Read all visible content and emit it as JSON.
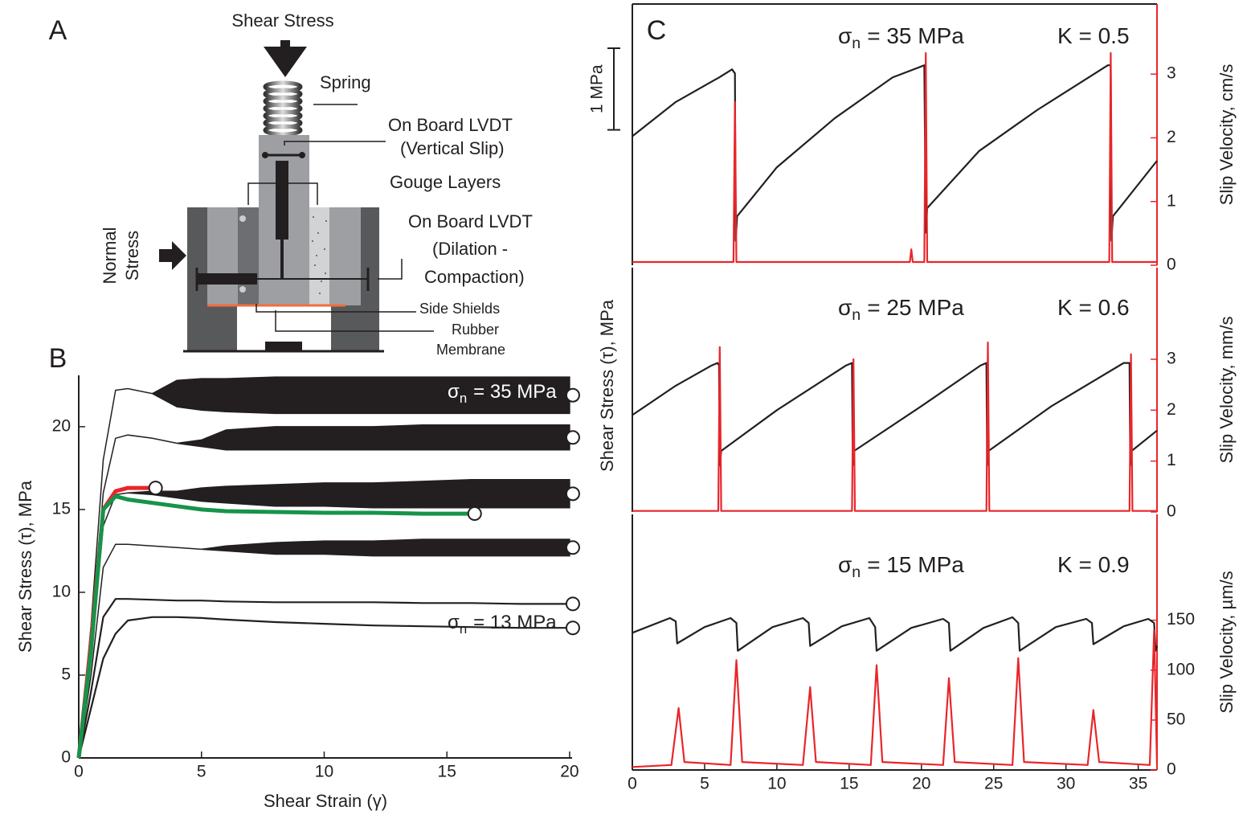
{
  "panel_labels": [
    "A",
    "B",
    "C"
  ],
  "diagram": {
    "labels": [
      "Shear Stress",
      "Spring",
      "On Board LVDT",
      "(Vertical Slip)",
      "Gouge Layers",
      "On Board LVDT",
      "(Dilation -",
      "Compaction)",
      "Normal",
      "Stress",
      "Side Shields",
      "Rubber",
      "Membrane"
    ]
  },
  "chart_data": [
    {
      "type": "line",
      "xlabel": "Shear Strain (γ)",
      "ylabel": "Shear Stress (τ), MPa",
      "xlim": [
        0,
        20.1
      ],
      "xticks": [
        0,
        5,
        10,
        15,
        20
      ],
      "ylim": [
        0,
        23.1
      ],
      "yticks": [
        0,
        5,
        10,
        15,
        20
      ],
      "end_markers": true,
      "x": [
        0,
        0.5,
        1,
        1.5,
        2,
        3,
        4,
        5,
        6,
        8,
        10,
        12,
        14,
        16,
        18,
        20
      ],
      "series": [
        {
          "color": "#231f20",
          "values": [
            0,
            8,
            18,
            22.2,
            22.3,
            22.0,
            21.2,
            21.0,
            20.9,
            20.8,
            20.8,
            20.8,
            20.8,
            20.8,
            20.8,
            20.8
          ],
          "high": [
            0,
            8,
            18,
            22.2,
            22.3,
            22.0,
            22.8,
            22.9,
            22.9,
            23,
            23,
            23,
            23,
            23,
            23,
            23
          ]
        },
        {
          "color": "#231f20",
          "values": [
            0,
            7,
            16,
            19.3,
            19.5,
            19.3,
            19.0,
            18.8,
            18.6,
            18.6,
            18.6,
            18.6,
            18.6,
            18.6,
            18.6,
            18.6
          ],
          "high": [
            0,
            7,
            16,
            19.3,
            19.5,
            19.3,
            19.0,
            19.2,
            19.8,
            20,
            20,
            20,
            20.1,
            20.1,
            20.1,
            20.1
          ]
        },
        {
          "color": "#231f20",
          "values": [
            0,
            6,
            14,
            15.9,
            16.0,
            15.9,
            15.7,
            15.5,
            15.4,
            15.2,
            15.2,
            15.1,
            15.1,
            15.1,
            15.1,
            15.1
          ],
          "high": [
            0,
            6,
            14,
            15.9,
            16.0,
            16.1,
            16.1,
            16.3,
            16.4,
            16.5,
            16.6,
            16.6,
            16.7,
            16.8,
            16.8,
            16.8
          ]
        },
        {
          "color": "#231f20",
          "values": [
            0,
            5,
            11.5,
            12.9,
            12.9,
            12.8,
            12.7,
            12.6,
            12.5,
            12.3,
            12.3,
            12.2,
            12.2,
            12.2,
            12.2,
            12.2
          ],
          "high": [
            0,
            5,
            11.5,
            12.9,
            12.9,
            12.8,
            12.7,
            12.6,
            12.8,
            13.0,
            13.1,
            13.1,
            13.2,
            13.2,
            13.2,
            13.2
          ]
        },
        {
          "color": "#231f20",
          "values": [
            0,
            4,
            8.5,
            9.6,
            9.6,
            9.55,
            9.5,
            9.5,
            9.45,
            9.4,
            9.4,
            9.4,
            9.35,
            9.35,
            9.3,
            9.3
          ]
        },
        {
          "color": "#231f20",
          "values": [
            0,
            3,
            6,
            7.5,
            8.3,
            8.5,
            8.5,
            8.45,
            8.35,
            8.2,
            8.1,
            8.0,
            7.95,
            7.9,
            7.85,
            7.85
          ]
        },
        {
          "color": "#e8262a",
          "values": [
            0,
            7,
            15,
            16.1,
            16.3,
            16.3,
            null,
            null,
            null,
            null,
            null,
            null,
            null,
            null,
            null,
            null
          ]
        },
        {
          "color": "#17934a",
          "values": [
            0,
            6.5,
            15,
            15.8,
            15.6,
            15.4,
            15.2,
            15.0,
            14.9,
            14.85,
            14.8,
            14.8,
            14.75,
            14.75,
            null,
            null
          ]
        }
      ],
      "annotations": [
        {
          "symbol": "σ",
          "sub": "n",
          "text": "= 35 MPa"
        },
        {
          "symbol": "σ",
          "sub": "n",
          "text": "= 13 MPa"
        }
      ]
    },
    {
      "type": "line",
      "xlim": [
        0,
        36.3
      ],
      "ylim": [
        20,
        23.2
      ],
      "y2lim": [
        0,
        4.1
      ],
      "y2ticks": [
        0,
        1,
        2,
        3
      ],
      "y2label": "Slip Velocity, cm/s",
      "scale_bar": {
        "value": 1,
        "label": "1 MPa"
      },
      "series": [
        {
          "color": "#231f20",
          "x": [
            0,
            3,
            6,
            6.9,
            7.1,
            7.15,
            7.25,
            10,
            14,
            18,
            20.2,
            20.3,
            20.4,
            24,
            28,
            32.9,
            33.1,
            33.15,
            33.25,
            36.3
          ],
          "values": [
            21.58,
            22.0,
            22.3,
            22.4,
            22.35,
            20.3,
            20.6,
            21.2,
            21.8,
            22.3,
            22.45,
            20.4,
            20.7,
            21.4,
            21.9,
            22.45,
            22.45,
            20.3,
            20.6,
            21.28
          ]
        },
        {
          "color": "#e8262a",
          "axis": "y2",
          "x": [
            0,
            7.0,
            7.1,
            7.2,
            19.2,
            19.3,
            19.4,
            20.2,
            20.3,
            20.4,
            33.0,
            33.1,
            33.2,
            36.3
          ],
          "values": [
            0.05,
            0.05,
            2.56,
            0.05,
            0.05,
            0.25,
            0.05,
            0.05,
            3.33,
            0.05,
            0.05,
            3.33,
            0.05,
            0.05
          ]
        }
      ],
      "annotations": [
        {
          "symbol": "σ",
          "sub": "n",
          "text": "= 35 MPa"
        },
        {
          "text": "K = 0.5"
        }
      ]
    },
    {
      "type": "line",
      "xlim": [
        0,
        36.3
      ],
      "ylim": [
        14.5,
        17.5
      ],
      "ylabel": "Shear Stress (τ), MPa",
      "y2lim": [
        0,
        4.8
      ],
      "y2ticks": [
        0,
        1,
        2,
        3
      ],
      "y2label": "Slip Velocity, mm/s",
      "series": [
        {
          "color": "#231f20",
          "x": [
            0,
            3,
            5.5,
            5.9,
            6.0,
            6.05,
            6.15,
            10,
            14.8,
            15.2,
            15.25,
            15.35,
            20,
            24.1,
            24.5,
            24.55,
            24.65,
            29,
            34.0,
            34.4,
            34.45,
            34.55,
            36.3
          ],
          "values": [
            15.69,
            16.05,
            16.3,
            16.33,
            16.3,
            15.07,
            15.25,
            15.75,
            16.3,
            16.33,
            15.07,
            15.25,
            15.8,
            16.3,
            16.33,
            15.07,
            15.25,
            15.8,
            16.33,
            16.33,
            15.07,
            15.25,
            15.5
          ]
        },
        {
          "color": "#e8262a",
          "axis": "y2",
          "x": [
            0,
            5.95,
            6.05,
            6.15,
            15.2,
            15.3,
            15.4,
            24.5,
            24.6,
            24.7,
            34.4,
            34.5,
            34.6,
            36.3
          ],
          "values": [
            0.02,
            0.02,
            3.24,
            0.02,
            0.02,
            3.0,
            0.02,
            0.02,
            3.33,
            0.02,
            0.02,
            3.1,
            0.02,
            0.02
          ]
        }
      ],
      "annotations": [
        {
          "symbol": "σ",
          "sub": "n",
          "text": "= 25 MPa"
        },
        {
          "text": "K = 0.6"
        }
      ]
    },
    {
      "type": "line",
      "xlim": [
        0,
        36.3
      ],
      "xticks": [
        0,
        5,
        10,
        15,
        20,
        25,
        30,
        35
      ],
      "ylim": [
        8,
        11.13
      ],
      "y2lim": [
        0,
        256
      ],
      "y2ticks": [
        0,
        50,
        100,
        150
      ],
      "y2label": "Slip Velocity, µm/s",
      "series": [
        {
          "color": "#231f20",
          "x": [
            0,
            2.6,
            3.0,
            3.1,
            5,
            6.8,
            7.2,
            7.3,
            9.7,
            11.8,
            12.2,
            12.3,
            14.5,
            16.4,
            16.8,
            16.9,
            19.3,
            21.5,
            21.9,
            22.0,
            24.3,
            26.3,
            26.7,
            26.8,
            29.3,
            31.4,
            31.8,
            31.9,
            34,
            35.7,
            36.1,
            36.2,
            36.3
          ],
          "values": [
            9.68,
            9.86,
            9.82,
            9.55,
            9.75,
            9.86,
            9.8,
            9.46,
            9.75,
            9.86,
            9.8,
            9.52,
            9.76,
            9.86,
            9.75,
            9.46,
            9.74,
            9.85,
            9.8,
            9.46,
            9.74,
            9.87,
            9.8,
            9.46,
            9.75,
            9.85,
            9.8,
            9.54,
            9.76,
            9.85,
            9.8,
            9.46,
            9.52
          ]
        },
        {
          "color": "#e8262a",
          "axis": "y2",
          "x": [
            0,
            2.7,
            3.2,
            3.6,
            6.8,
            7.2,
            7.6,
            11.8,
            12.3,
            12.7,
            16.5,
            16.9,
            17.3,
            21.5,
            21.9,
            22.3,
            26.3,
            26.7,
            27.1,
            31.5,
            31.9,
            32.3,
            35.8,
            36.1,
            36.3
          ],
          "values": [
            3,
            5,
            62,
            8,
            5,
            110,
            8,
            5,
            83,
            8,
            5,
            105,
            8,
            5,
            92,
            8,
            5,
            112,
            8,
            5,
            60,
            8,
            5,
            140,
            5
          ]
        }
      ],
      "annotations": [
        {
          "symbol": "σ",
          "sub": "n",
          "text": "= 15 MPa"
        },
        {
          "text": "K = 0.9"
        }
      ]
    }
  ]
}
